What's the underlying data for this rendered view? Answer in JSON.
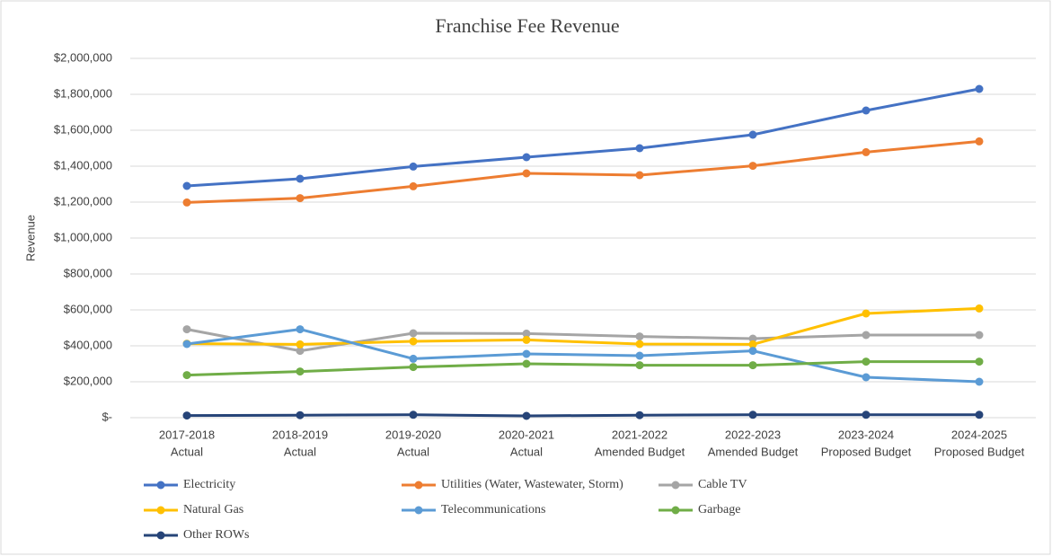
{
  "chart_data": {
    "type": "line",
    "title": "Franchise Fee Revenue",
    "y_label": "Revenue",
    "categories": [
      [
        "2017-2018",
        "Actual"
      ],
      [
        "2018-2019",
        "Actual"
      ],
      [
        "2019-2020",
        "Actual"
      ],
      [
        "2020-2021",
        "Actual"
      ],
      [
        "2021-2022",
        "Amended Budget"
      ],
      [
        "2022-2023",
        "Amended Budget"
      ],
      [
        "2023-2024",
        "Proposed Budget"
      ],
      [
        "2024-2025",
        "Proposed Budget"
      ]
    ],
    "series": [
      {
        "name": "Electricity",
        "color": "#4472c4",
        "values": [
          1290000,
          1330000,
          1398000,
          1450000,
          1500000,
          1575000,
          1710000,
          1830000
        ]
      },
      {
        "name": "Utilities (Water, Wastewater, Storm)",
        "color": "#ed7d31",
        "values": [
          1198000,
          1222000,
          1288000,
          1360000,
          1350000,
          1402000,
          1478000,
          1538000
        ]
      },
      {
        "name": "Cable TV",
        "color": "#a5a5a5",
        "values": [
          492000,
          372000,
          470000,
          468000,
          452000,
          440000,
          460000,
          460000
        ]
      },
      {
        "name": "Natural Gas",
        "color": "#ffc000",
        "values": [
          412000,
          408000,
          425000,
          433000,
          410000,
          408000,
          580000,
          608000
        ]
      },
      {
        "name": "Telecommunications",
        "color": "#5b9bd5",
        "values": [
          410000,
          492000,
          328000,
          355000,
          345000,
          372000,
          225000,
          200000
        ]
      },
      {
        "name": "Garbage",
        "color": "#70ad47",
        "values": [
          237000,
          257000,
          282000,
          300000,
          292000,
          292000,
          312000,
          312000
        ]
      },
      {
        "name": "Other ROWs",
        "color": "#264478",
        "values": [
          12000,
          14000,
          16000,
          10000,
          14000,
          16000,
          16000,
          16000
        ]
      }
    ],
    "ylim": [
      0,
      2000000
    ],
    "yticks": [
      {
        "value": 0,
        "label": "$-"
      },
      {
        "value": 200000,
        "label": "$200,000"
      },
      {
        "value": 400000,
        "label": "$400,000"
      },
      {
        "value": 600000,
        "label": "$600,000"
      },
      {
        "value": 800000,
        "label": "$800,000"
      },
      {
        "value": 1000000,
        "label": "$1,000,000"
      },
      {
        "value": 1200000,
        "label": "$1,200,000"
      },
      {
        "value": 1400000,
        "label": "$1,400,000"
      },
      {
        "value": 1600000,
        "label": "$1,600,000"
      },
      {
        "value": 1800000,
        "label": "$1,800,000"
      },
      {
        "value": 2000000,
        "label": "$2,000,000"
      }
    ],
    "grid": true,
    "legend": "bottom"
  }
}
